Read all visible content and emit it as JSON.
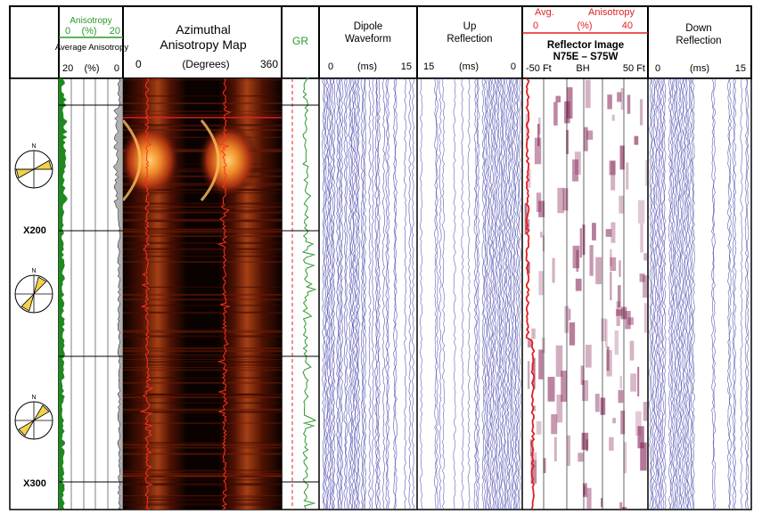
{
  "chart_data": {
    "type": "well-log",
    "depth_markers": [
      "X200",
      "X300"
    ],
    "tracks": [
      {
        "key": "anisotropy",
        "label_top": "Anisotropy",
        "scale_top": [
          "0",
          "(%)",
          "20"
        ],
        "label_bottom": "Average Anisotropy",
        "scale_bottom": [
          "20",
          "(%)",
          "0"
        ]
      },
      {
        "key": "azimuthal",
        "title_line1": "Azimuthal",
        "title_line2": "Anisotropy Map",
        "scale": [
          "0",
          "(Degrees)",
          "360"
        ]
      },
      {
        "key": "gr",
        "title": "GR"
      },
      {
        "key": "dipole",
        "title_line1": "Dipole",
        "title_line2": "Waveform",
        "scale": [
          "0",
          "(ms)",
          "15"
        ]
      },
      {
        "key": "up",
        "title_line1": "Up",
        "title_line2": "Reflection",
        "scale": [
          "15",
          "(ms)",
          "0"
        ]
      },
      {
        "key": "reflector",
        "label_top_left": "Avg.",
        "label_top_right": "Anisotropy",
        "scale_top": [
          "0",
          "(%)",
          "40"
        ],
        "title_line1": "Reflector Image",
        "title_line2": "N75E – S75W",
        "scale_bottom": [
          "-50 Ft",
          "BH",
          "50 Ft"
        ]
      },
      {
        "key": "down",
        "title_line1": "Down",
        "title_line2": "Reflection",
        "scale": [
          "0",
          "(ms)",
          "15"
        ]
      }
    ],
    "compass_azimuths_deg": [
      75,
      30,
      45
    ],
    "colors": {
      "green": "#2a9a2a",
      "red": "#e02020",
      "wave": "#3a3aa8",
      "reflector": "#8a2a5a",
      "rose": "#f2d24a"
    }
  }
}
